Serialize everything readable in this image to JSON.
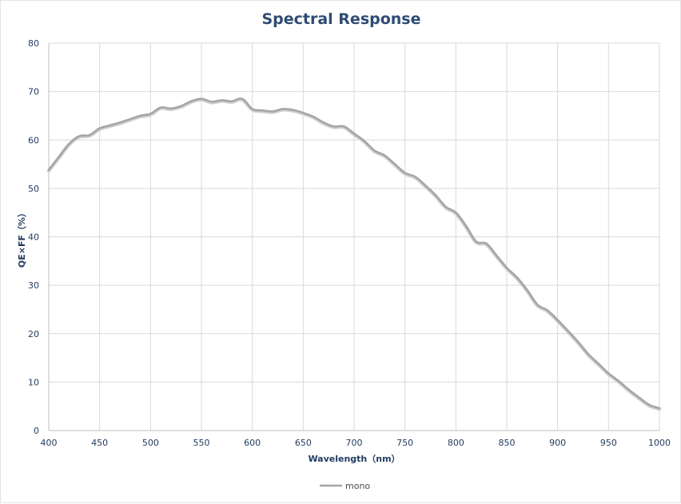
{
  "chart_data": {
    "type": "line",
    "title": "Spectral Response",
    "xlabel": "Wavelength（nm）",
    "ylabel": "QE×FF（%）",
    "xlim": [
      400,
      1000
    ],
    "ylim": [
      0,
      80
    ],
    "x_ticks": [
      400,
      450,
      500,
      550,
      600,
      650,
      700,
      750,
      800,
      850,
      900,
      950,
      1000
    ],
    "y_ticks": [
      0,
      10,
      20,
      30,
      40,
      50,
      60,
      70,
      80
    ],
    "grid": true,
    "legend_position": "bottom",
    "series": [
      {
        "name": "mono",
        "color": "#a6a6a6",
        "x": [
          400,
          410,
          420,
          430,
          440,
          450,
          460,
          470,
          480,
          490,
          500,
          510,
          520,
          530,
          540,
          550,
          560,
          570,
          580,
          590,
          600,
          610,
          620,
          630,
          640,
          650,
          660,
          670,
          680,
          690,
          700,
          710,
          720,
          730,
          740,
          750,
          760,
          770,
          780,
          790,
          800,
          810,
          820,
          830,
          840,
          850,
          860,
          870,
          880,
          890,
          900,
          910,
          920,
          930,
          940,
          950,
          960,
          970,
          980,
          990,
          1000
        ],
        "y": [
          53.8,
          56.5,
          59.2,
          60.8,
          61.0,
          62.4,
          63.0,
          63.6,
          64.3,
          65.0,
          65.4,
          66.7,
          66.5,
          67.0,
          68.0,
          68.5,
          67.9,
          68.2,
          68.0,
          68.5,
          66.4,
          66.1,
          65.9,
          66.4,
          66.2,
          65.6,
          64.8,
          63.6,
          62.8,
          62.8,
          61.3,
          59.8,
          57.8,
          56.8,
          55.0,
          53.2,
          52.4,
          50.6,
          48.6,
          46.2,
          45.0,
          42.2,
          39.0,
          38.6,
          36.1,
          33.6,
          31.6,
          29.0,
          26.0,
          24.8,
          22.8,
          20.6,
          18.3,
          15.8,
          13.8,
          11.8,
          10.2,
          8.4,
          6.8,
          5.3,
          4.6
        ]
      }
    ]
  }
}
